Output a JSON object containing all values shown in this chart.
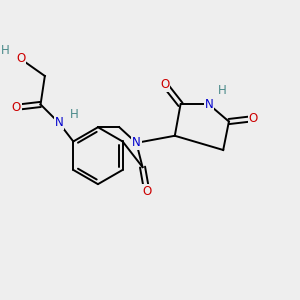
{
  "bg_color": "#eeeeee",
  "atom_colors": {
    "C": "#000000",
    "N": "#0000cc",
    "O": "#cc0000",
    "H": "#4a8a8a"
  },
  "bond_color": "#000000",
  "bond_width": 1.4,
  "figsize": [
    3.0,
    3.0
  ],
  "dpi": 100
}
